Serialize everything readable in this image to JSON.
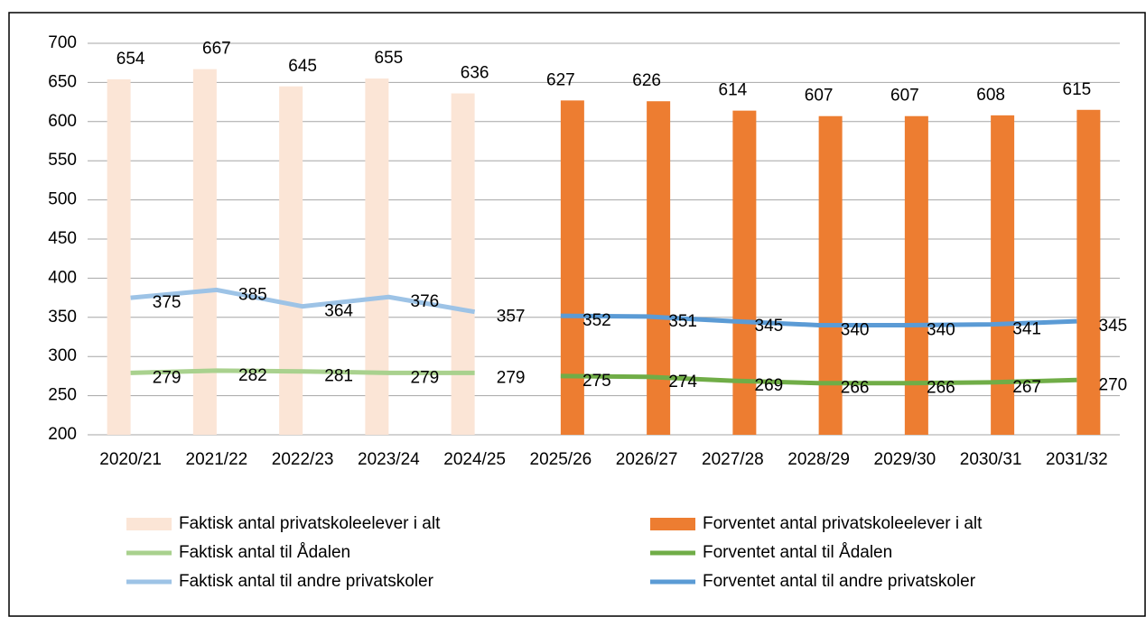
{
  "chart_data": {
    "type": "bar-line",
    "categories": [
      "2020/21",
      "2021/22",
      "2022/23",
      "2023/24",
      "2024/25",
      "2025/26",
      "2026/27",
      "2027/28",
      "2028/29",
      "2029/30",
      "2030/31",
      "2031/32"
    ],
    "ylim": [
      200,
      700
    ],
    "yticks": [
      200,
      250,
      300,
      350,
      400,
      450,
      500,
      550,
      600,
      650,
      700
    ],
    "grid": true,
    "series": [
      {
        "name": "Faktisk antal privatskoleelever i alt",
        "kind": "bar",
        "color": "#fbe5d6",
        "values": [
          654,
          667,
          645,
          655,
          636,
          null,
          null,
          null,
          null,
          null,
          null,
          null
        ]
      },
      {
        "name": "Forventet antal privatskoleelever i alt",
        "kind": "bar",
        "color": "#ed7d31",
        "values": [
          null,
          null,
          null,
          null,
          null,
          627,
          626,
          614,
          607,
          607,
          608,
          615
        ]
      },
      {
        "name": "Faktisk antal til Ådalen",
        "kind": "line",
        "color": "#a9d18e",
        "values": [
          279,
          282,
          281,
          279,
          279,
          null,
          null,
          null,
          null,
          null,
          null,
          null
        ]
      },
      {
        "name": "Forventet antal til Ådalen",
        "kind": "line",
        "color": "#70ad47",
        "values": [
          null,
          null,
          null,
          null,
          null,
          275,
          274,
          269,
          266,
          266,
          267,
          270
        ]
      },
      {
        "name": "Faktisk antal til andre privatskoler",
        "kind": "line",
        "color": "#9dc3e6",
        "values": [
          375,
          385,
          364,
          376,
          357,
          null,
          null,
          null,
          null,
          null,
          null,
          null
        ]
      },
      {
        "name": "Forventet antal til andre privatskoler",
        "kind": "line",
        "color": "#5b9bd5",
        "values": [
          null,
          null,
          null,
          null,
          null,
          352,
          351,
          345,
          340,
          340,
          341,
          345
        ]
      }
    ]
  }
}
